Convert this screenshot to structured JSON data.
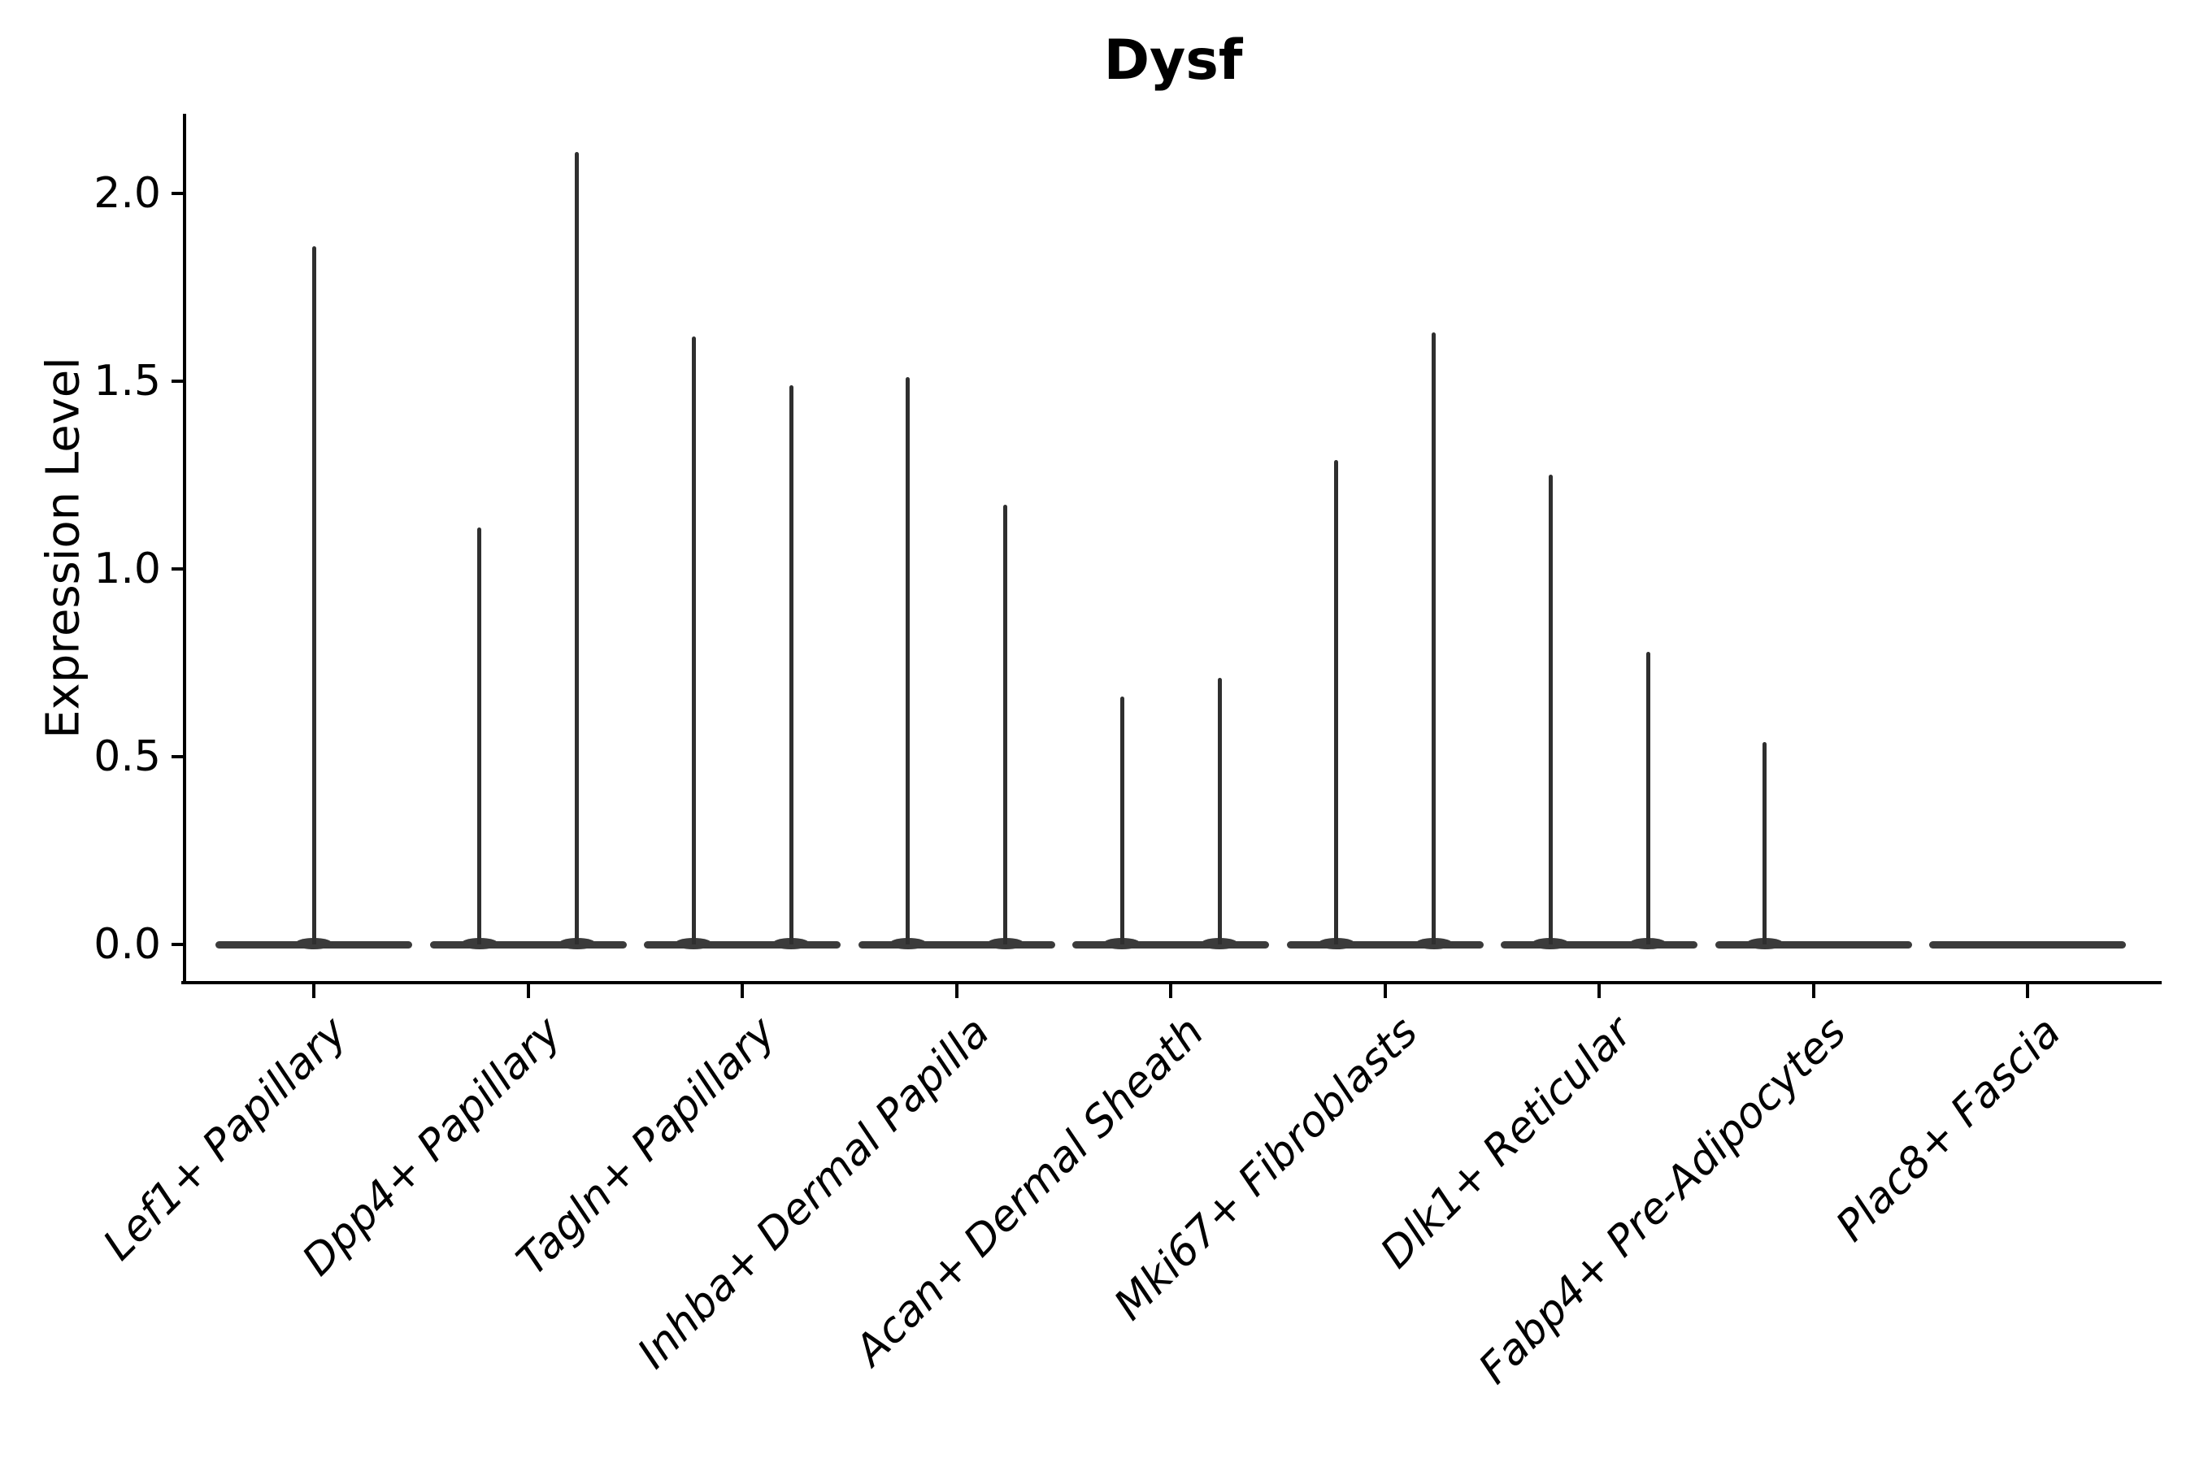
{
  "title": {
    "text": "Dysf"
  },
  "y_axis": {
    "label": "Expression Level",
    "ticks": [
      "2.0",
      "1.5",
      "1.0",
      "0.5",
      "0.0"
    ]
  },
  "x_axis": {
    "categories": [
      "Lef1+ Papillary",
      "Dpp4+ Papillary",
      "Tagln+ Papillary",
      "Inhba+ Dermal Papilla",
      "Acan+ Dermal Sheath",
      "Mki67+ Fibroblasts",
      "Dlk1+ Reticular",
      "Fabp4+ Pre-Adipocytes",
      "Plac8+ Fascia"
    ]
  },
  "chart_data": {
    "type": "violin",
    "title": "Dysf",
    "xlabel": "",
    "ylabel": "Expression Level",
    "ylim": [
      -0.1,
      2.21
    ],
    "yticks": [
      0.0,
      0.5,
      1.0,
      1.5,
      2.0
    ],
    "grid": false,
    "x_tick_rotation_deg": 45,
    "x_tick_style": "italic",
    "baseline_value": 0.0,
    "categories": [
      "Lef1+ Papillary",
      "Dpp4+ Papillary",
      "Tagln+ Papillary",
      "Inhba+ Dermal Papilla",
      "Acan+ Dermal Sheath",
      "Mki67+ Fibroblasts",
      "Dlk1+ Reticular",
      "Fabp4+ Pre-Adipocytes",
      "Plac8+ Fascia"
    ],
    "violins": [
      {
        "category": "Lef1+ Papillary",
        "spikes": [
          {
            "position": "center",
            "max_expression": 1.86
          }
        ]
      },
      {
        "category": "Dpp4+ Papillary",
        "spikes": [
          {
            "position": "left",
            "max_expression": 1.11
          },
          {
            "position": "right",
            "max_expression": 2.11
          }
        ]
      },
      {
        "category": "Tagln+ Papillary",
        "spikes": [
          {
            "position": "left",
            "max_expression": 1.62
          },
          {
            "position": "right",
            "max_expression": 1.49
          }
        ]
      },
      {
        "category": "Inhba+ Dermal Papilla",
        "spikes": [
          {
            "position": "left",
            "max_expression": 1.51
          },
          {
            "position": "right",
            "max_expression": 1.17
          }
        ]
      },
      {
        "category": "Acan+ Dermal Sheath",
        "spikes": [
          {
            "position": "left",
            "max_expression": 0.66
          },
          {
            "position": "right",
            "max_expression": 0.71
          }
        ]
      },
      {
        "category": "Mki67+ Fibroblasts",
        "spikes": [
          {
            "position": "left",
            "max_expression": 1.29
          },
          {
            "position": "right",
            "max_expression": 1.63
          }
        ]
      },
      {
        "category": "Dlk1+ Reticular",
        "spikes": [
          {
            "position": "left",
            "max_expression": 1.25
          },
          {
            "position": "right",
            "max_expression": 0.78
          }
        ]
      },
      {
        "category": "Fabp4+ Pre-Adipocytes",
        "spikes": [
          {
            "position": "left",
            "max_expression": 0.54
          }
        ]
      },
      {
        "category": "Plac8+ Fascia",
        "spikes": []
      }
    ]
  },
  "colors": {
    "background": "#ffffff",
    "axis": "#000000",
    "text": "#000000",
    "violin_line": "#2f2f2f",
    "violin_base": "#3b3b3b"
  }
}
